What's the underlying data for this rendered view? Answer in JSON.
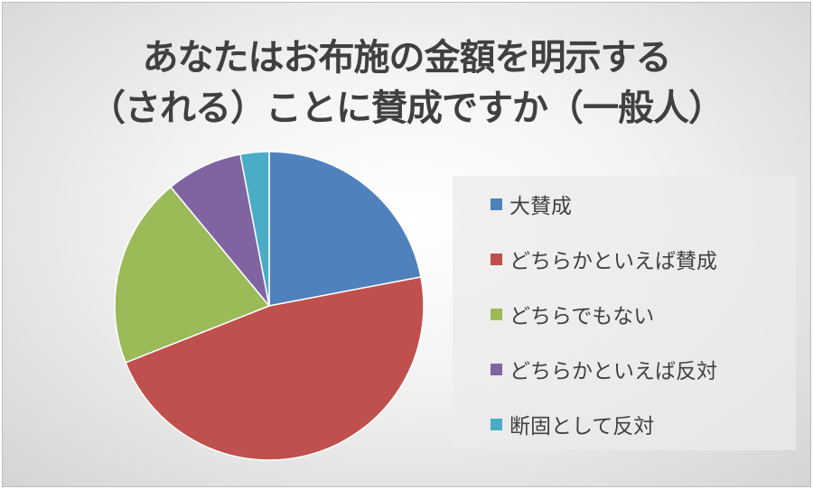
{
  "chart_data": {
    "type": "pie",
    "title_lines": [
      "あなたはお布施の金額を明示する",
      "（される）ことに賛成ですか（一般人）"
    ],
    "categories": [
      "大賛成",
      "どちらかといえば賛成",
      "どちらでもない",
      "どちらかといえば反対",
      "断固として反対"
    ],
    "values": [
      22,
      47,
      20,
      8,
      3
    ],
    "colors": [
      "#4f81bd",
      "#c0504d",
      "#9bbb59",
      "#8064a2",
      "#4bacc6"
    ],
    "start_angle": "12 o'clock",
    "direction": "clockwise",
    "legend_position": "right"
  }
}
